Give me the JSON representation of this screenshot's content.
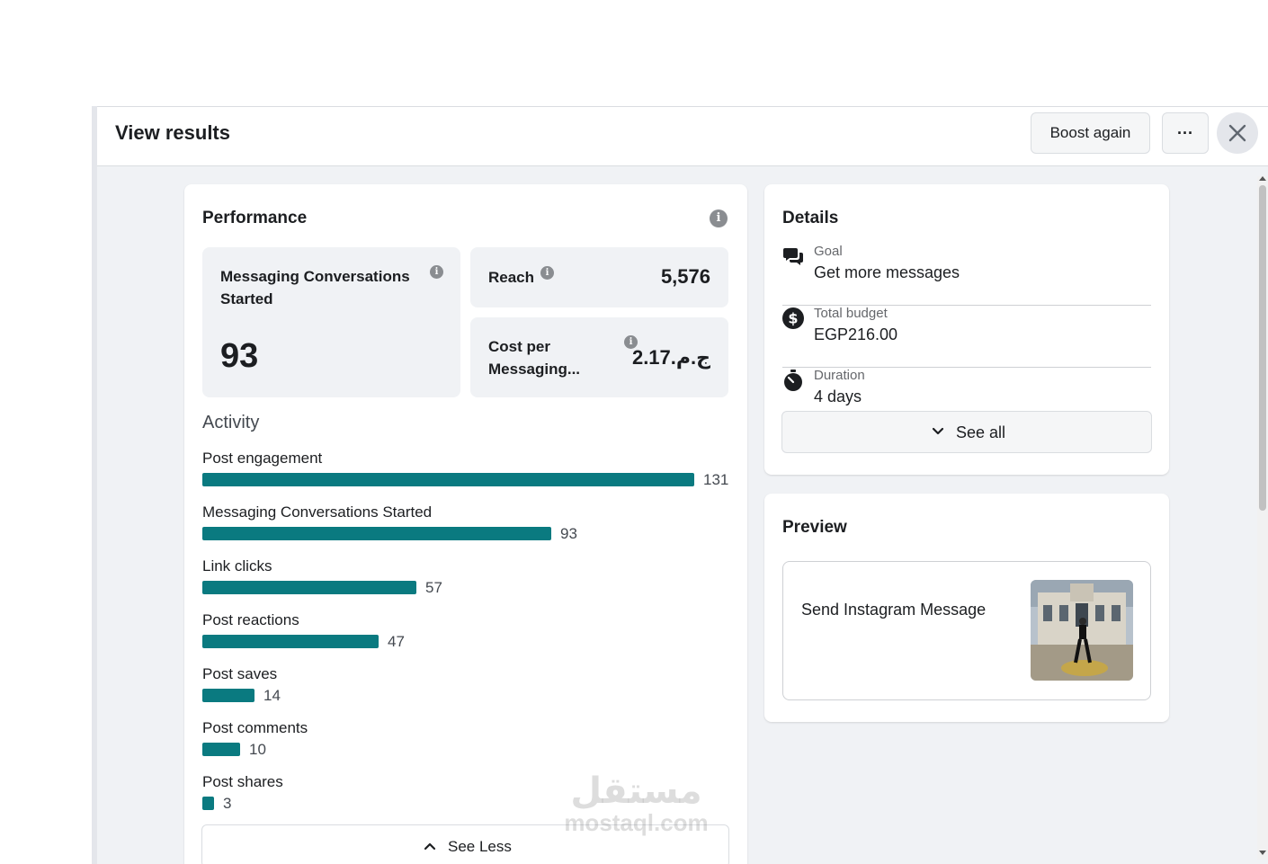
{
  "dialog": {
    "title": "View results",
    "boost_label": "Boost again",
    "more_label": "···"
  },
  "performance": {
    "title": "Performance",
    "metrics": {
      "messaging": {
        "label": "Messaging Conversations Started",
        "value": "93"
      },
      "reach": {
        "label": "Reach",
        "value": "5,576"
      },
      "cost": {
        "label": "Cost per Messaging...",
        "value": "2.17ج.م.‏"
      }
    },
    "activity_title": "Activity",
    "activity": [
      {
        "label": "Post engagement",
        "value": 131
      },
      {
        "label": "Messaging Conversations Started",
        "value": 93
      },
      {
        "label": "Link clicks",
        "value": 57
      },
      {
        "label": "Post reactions",
        "value": 47
      },
      {
        "label": "Post saves",
        "value": 14
      },
      {
        "label": "Post comments",
        "value": 10
      },
      {
        "label": "Post shares",
        "value": 3
      }
    ],
    "see_less_label": "See Less"
  },
  "details": {
    "title": "Details",
    "rows": [
      {
        "icon": "chat-bubbles-icon",
        "label": "Goal",
        "value": "Get more messages"
      },
      {
        "icon": "dollar-icon",
        "label": "Total budget",
        "value": "EGP216.00"
      },
      {
        "icon": "stopwatch-icon",
        "label": "Duration",
        "value": "4 days"
      }
    ],
    "see_all_label": "See all"
  },
  "preview": {
    "title": "Preview",
    "text": "Send Instagram Message"
  },
  "watermark": {
    "arabic": "مستقل",
    "latin": "mostaql.com"
  },
  "colors": {
    "bar": "#0a7a80",
    "background": "#f0f2f5",
    "card": "#ffffff"
  }
}
